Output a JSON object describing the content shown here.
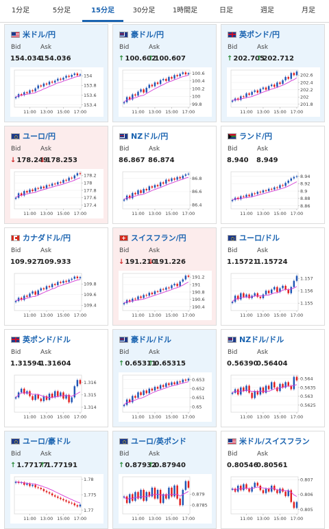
{
  "tabs": [
    {
      "label": "1分足",
      "active": false
    },
    {
      "label": "5分足",
      "active": false
    },
    {
      "label": "15分足",
      "active": true
    },
    {
      "label": "30分足",
      "active": false
    },
    {
      "label": "1時間足",
      "active": false
    },
    {
      "label": "日足",
      "active": false
    },
    {
      "label": "週足",
      "active": false
    },
    {
      "label": "月足",
      "active": false
    }
  ],
  "labels": {
    "bid": "Bid",
    "ask": "Ask"
  },
  "colors": {
    "candle_up": "#1f55b4",
    "candle_down": "#e01c1c",
    "moving_average": "#d63bd6",
    "accent": "#1a63b0",
    "arrow_up": "#2a8a3a",
    "arrow_down": "#d02828"
  },
  "pairs": [
    {
      "name": "米ドル/円",
      "flag_icon": "us-flag-icon",
      "flag": "us",
      "bid": "154.034",
      "ask": "154.036",
      "arrow": "",
      "highlight": "pos",
      "chart": {
        "type": "candlestick",
        "x_ticks": [
          "11:00",
          "13:00",
          "15:00",
          "17:00"
        ],
        "y_ticks": [
          "154",
          "153.8",
          "153.6",
          "153.4"
        ],
        "ylim": [
          153.35,
          154.12
        ],
        "closes": [
          153.56,
          153.62,
          153.6,
          153.66,
          153.64,
          153.7,
          153.68,
          153.74,
          153.8,
          153.78,
          153.84,
          153.82,
          153.88,
          153.86,
          153.9,
          153.94,
          153.92,
          153.96,
          154.0,
          153.98,
          154.02,
          154.05,
          154.01,
          154.03
        ]
      }
    },
    {
      "name": "豪ドル/円",
      "flag_icon": "au-flag-icon",
      "flag": "au",
      "bid": "100.602",
      "ask": "100.607",
      "arrow": "up",
      "highlight": "pos",
      "chart": {
        "type": "candlestick",
        "x_ticks": [
          "11:00",
          "13:00",
          "15:00",
          "17:00"
        ],
        "y_ticks": [
          "100.6",
          "100.4",
          "100.2",
          "100",
          "99.8"
        ],
        "ylim": [
          99.72,
          100.68
        ],
        "closes": [
          99.85,
          99.98,
          99.92,
          100.05,
          100.02,
          100.12,
          100.18,
          100.1,
          100.22,
          100.3,
          100.26,
          100.36,
          100.32,
          100.42,
          100.45,
          100.4,
          100.5,
          100.46,
          100.55,
          100.52,
          100.58,
          100.62,
          100.57,
          100.6
        ]
      }
    },
    {
      "name": "英ポンド/円",
      "flag_icon": "gb-flag-icon",
      "flag": "gb",
      "bid": "202.705",
      "ask": "202.712",
      "arrow": "up",
      "highlight": "pos",
      "chart": {
        "type": "candlestick",
        "x_ticks": [
          "11:00",
          "13:00",
          "15:00",
          "17:00"
        ],
        "y_ticks": [
          "202.6",
          "202.4",
          "202.2",
          "202",
          "201.8"
        ],
        "ylim": [
          201.72,
          202.74
        ],
        "closes": [
          201.9,
          201.96,
          201.92,
          202.02,
          202.0,
          202.1,
          202.06,
          202.14,
          202.18,
          202.12,
          202.22,
          202.26,
          202.2,
          202.3,
          202.34,
          202.28,
          202.4,
          202.36,
          202.46,
          202.55,
          202.5,
          202.66,
          202.6,
          202.7
        ]
      }
    },
    {
      "name": "ユーロ/円",
      "flag_icon": "eu-flag-icon",
      "flag": "eu",
      "bid": "178.249",
      "ask": "178.253",
      "arrow": "down",
      "highlight": "neg",
      "chart": {
        "type": "candlestick",
        "x_ticks": [
          "11:00",
          "13:00",
          "15:00",
          "17:00"
        ],
        "y_ticks": [
          "178.2",
          "178",
          "177.8",
          "177.6",
          "177.4"
        ],
        "ylim": [
          177.3,
          178.3
        ],
        "closes": [
          177.6,
          177.72,
          177.66,
          177.78,
          177.74,
          177.82,
          177.78,
          177.86,
          177.84,
          177.9,
          177.86,
          177.94,
          177.92,
          177.98,
          177.96,
          178.02,
          178.0,
          178.08,
          178.06,
          178.14,
          178.12,
          178.2,
          178.26,
          178.24
        ]
      }
    },
    {
      "name": "NZドル/円",
      "flag_icon": "nz-flag-icon",
      "flag": "nz",
      "bid": "86.867",
      "ask": "86.874",
      "arrow": "",
      "highlight": "none",
      "chart": {
        "type": "candlestick",
        "x_ticks": [
          "11:00",
          "13:00",
          "15:00",
          "17:00"
        ],
        "y_ticks": [
          "86.8",
          "86.6",
          "86.4"
        ],
        "ylim": [
          86.34,
          86.9
        ],
        "closes": [
          86.48,
          86.54,
          86.5,
          86.58,
          86.56,
          86.62,
          86.58,
          86.64,
          86.62,
          86.68,
          86.66,
          86.7,
          86.68,
          86.74,
          86.72,
          86.78,
          86.76,
          86.8,
          86.78,
          86.82,
          86.8,
          86.84,
          86.86,
          86.87
        ]
      }
    },
    {
      "name": "ランド/円",
      "flag_icon": "za-flag-icon",
      "flag": "za",
      "bid": "8.940",
      "ask": "8.949",
      "arrow": "",
      "highlight": "none",
      "chart": {
        "type": "candlestick",
        "x_ticks": [
          "11:00",
          "13:00",
          "15:00",
          "17:00"
        ],
        "y_ticks": [
          "8.94",
          "8.92",
          "8.9",
          "8.88",
          "8.86"
        ],
        "ylim": [
          8.852,
          8.952
        ],
        "closes": [
          8.876,
          8.882,
          8.878,
          8.886,
          8.884,
          8.89,
          8.886,
          8.894,
          8.892,
          8.898,
          8.896,
          8.902,
          8.9,
          8.906,
          8.904,
          8.91,
          8.908,
          8.916,
          8.914,
          8.922,
          8.928,
          8.934,
          8.938,
          8.94
        ]
      }
    },
    {
      "name": "カナダドル/円",
      "flag_icon": "ca-flag-icon",
      "flag": "ca",
      "bid": "109.927",
      "ask": "109.933",
      "arrow": "",
      "highlight": "none",
      "chart": {
        "type": "candlestick",
        "x_ticks": [
          "11:00",
          "13:00",
          "15:00",
          "17:00"
        ],
        "y_ticks": [
          "109.8",
          "109.6",
          "109.4"
        ],
        "ylim": [
          109.3,
          110.0
        ],
        "closes": [
          109.48,
          109.54,
          109.5,
          109.58,
          109.56,
          109.62,
          109.66,
          109.6,
          109.68,
          109.72,
          109.7,
          109.76,
          109.74,
          109.8,
          109.78,
          109.84,
          109.82,
          109.86,
          109.84,
          109.88,
          109.9,
          109.94,
          109.91,
          109.93
        ]
      }
    },
    {
      "name": "スイスフラン/円",
      "flag_icon": "ch-flag-icon",
      "flag": "ch",
      "bid": "191.210",
      "ask": "191.226",
      "arrow": "down",
      "highlight": "neg",
      "chart": {
        "type": "candlestick",
        "x_ticks": [
          "11:00",
          "13:00",
          "15:00",
          "17:00"
        ],
        "y_ticks": [
          "191.2",
          "191",
          "190.8",
          "190.6",
          "190.4"
        ],
        "ylim": [
          190.3,
          191.3
        ],
        "closes": [
          190.5,
          190.58,
          190.54,
          190.62,
          190.6,
          190.68,
          190.64,
          190.72,
          190.7,
          190.78,
          190.74,
          190.82,
          190.8,
          190.88,
          190.86,
          190.92,
          190.9,
          190.98,
          191.02,
          190.96,
          191.08,
          191.14,
          191.24,
          191.21
        ]
      }
    },
    {
      "name": "ユーロ/ドル",
      "flag_icon": "eu-flag-icon",
      "flag": "eu",
      "bid": "1.15721",
      "ask": "1.15724",
      "arrow": "",
      "highlight": "none",
      "chart": {
        "type": "candlestick",
        "x_ticks": [
          "11:00",
          "13:00",
          "15:00",
          "17:00"
        ],
        "y_ticks": [
          "1.157",
          "1.156",
          "1.155"
        ],
        "ylim": [
          1.1544,
          1.1574
        ],
        "closes": [
          1.1551,
          1.1556,
          1.1553,
          1.1558,
          1.1555,
          1.1557,
          1.1554,
          1.1556,
          1.1558,
          1.1555,
          1.1554,
          1.1557,
          1.156,
          1.1558,
          1.1561,
          1.1563,
          1.1559,
          1.1562,
          1.1564,
          1.1561,
          1.1558,
          1.1563,
          1.1568,
          1.1572
        ]
      }
    },
    {
      "name": "英ポンド/ドル",
      "flag_icon": "gb-flag-icon",
      "flag": "gb",
      "bid": "1.31594",
      "ask": "1.31604",
      "arrow": "",
      "highlight": "none",
      "chart": {
        "type": "candlestick",
        "x_ticks": [
          "11:00",
          "13:00",
          "15:00",
          "17:00"
        ],
        "y_ticks": [
          "1.316",
          "1.315",
          "1.314"
        ],
        "ylim": [
          1.3136,
          1.3166
        ],
        "closes": [
          1.3148,
          1.3152,
          1.3155,
          1.3151,
          1.3153,
          1.3149,
          1.3146,
          1.315,
          1.3147,
          1.3145,
          1.3149,
          1.3146,
          1.3151,
          1.3148,
          1.3153,
          1.3149,
          1.3152,
          1.3147,
          1.315,
          1.3144,
          1.3148,
          1.3157,
          1.3162,
          1.3159
        ]
      }
    },
    {
      "name": "豪ドル/ドル",
      "flag_icon": "au-flag-icon",
      "flag": "au",
      "bid": "0.65311",
      "ask": "0.65315",
      "arrow": "up",
      "highlight": "pos",
      "chart": {
        "type": "candlestick",
        "x_ticks": [
          "11:00",
          "13:00",
          "15:00",
          "17:00"
        ],
        "y_ticks": [
          "0.653",
          "0.652",
          "0.651",
          "0.65"
        ],
        "ylim": [
          0.6494,
          0.6535
        ],
        "closes": [
          0.6502,
          0.6508,
          0.6505,
          0.6512,
          0.651,
          0.6516,
          0.6513,
          0.6518,
          0.6515,
          0.652,
          0.6518,
          0.6522,
          0.652,
          0.6524,
          0.6522,
          0.6526,
          0.6524,
          0.6527,
          0.6525,
          0.6528,
          0.6527,
          0.653,
          0.6529,
          0.6531
        ]
      }
    },
    {
      "name": "NZドル/ドル",
      "flag_icon": "nz-flag-icon",
      "flag": "nz",
      "bid": "0.56390",
      "ask": "0.56404",
      "arrow": "",
      "highlight": "none",
      "chart": {
        "type": "candlestick",
        "x_ticks": [
          "11:00",
          "13:00",
          "15:00",
          "17:00"
        ],
        "y_ticks": [
          "0.564",
          "0.5635",
          "0.563",
          "0.5625"
        ],
        "ylim": [
          0.5621,
          0.5642
        ],
        "closes": [
          0.5632,
          0.5634,
          0.5631,
          0.5635,
          0.5633,
          0.5636,
          0.5632,
          0.5629,
          0.5633,
          0.5631,
          0.5635,
          0.5632,
          0.5636,
          0.5634,
          0.5638,
          0.5635,
          0.5633,
          0.5637,
          0.5635,
          0.5638,
          0.5636,
          0.5634,
          0.5641,
          0.5639
        ]
      }
    },
    {
      "name": "ユーロ/豪ドル",
      "flag_icon": "eu-flag-icon",
      "flag": "eu",
      "bid": "1.77177",
      "ask": "1.77191",
      "arrow": "up",
      "highlight": "pos",
      "chart": {
        "type": "candlestick",
        "x_ticks": [
          "11:00",
          "13:00",
          "15:00",
          "17:00"
        ],
        "y_ticks": [
          "1.78",
          "1.775",
          "1.77"
        ],
        "ylim": [
          1.7688,
          1.7808
        ],
        "closes": [
          1.7792,
          1.7788,
          1.779,
          1.7782,
          1.7786,
          1.7778,
          1.7782,
          1.7774,
          1.7772,
          1.7768,
          1.7762,
          1.7758,
          1.7754,
          1.7748,
          1.7744,
          1.774,
          1.7736,
          1.7732,
          1.7728,
          1.7724,
          1.7722,
          1.7716,
          1.7712,
          1.7718
        ]
      }
    },
    {
      "name": "ユーロ/英ポンド",
      "flag_icon": "eu-flag-icon",
      "flag": "eu",
      "bid": "0.87932",
      "ask": "0.87940",
      "arrow": "up",
      "highlight": "pos",
      "chart": {
        "type": "candlestick",
        "x_ticks": [
          "11:00",
          "13:00",
          "15:00",
          "17:00"
        ],
        "y_ticks": [
          "0.879",
          "0.8785"
        ],
        "ylim": [
          0.8781,
          0.8798
        ],
        "closes": [
          0.8789,
          0.8786,
          0.879,
          0.8787,
          0.8791,
          0.8788,
          0.8792,
          0.8787,
          0.8791,
          0.8789,
          0.8793,
          0.8788,
          0.8792,
          0.8786,
          0.879,
          0.8788,
          0.8793,
          0.8789,
          0.8794,
          0.8788,
          0.8785,
          0.8792,
          0.8796,
          0.8793
        ]
      }
    },
    {
      "name": "米ドル/スイスフラン",
      "flag_icon": "us-flag-icon",
      "flag": "us",
      "bid": "0.80546",
      "ask": "0.80561",
      "arrow": "",
      "highlight": "none",
      "chart": {
        "type": "candlestick",
        "x_ticks": [
          "11:00",
          "13:00",
          "15:00",
          "17:00"
        ],
        "y_ticks": [
          "0.807",
          "0.806",
          "0.805"
        ],
        "ylim": [
          0.8047,
          0.8072
        ],
        "closes": [
          0.8064,
          0.8062,
          0.8066,
          0.8063,
          0.8067,
          0.8064,
          0.8062,
          0.8065,
          0.8068,
          0.8066,
          0.8063,
          0.8061,
          0.8064,
          0.8062,
          0.8066,
          0.8063,
          0.8061,
          0.8064,
          0.8062,
          0.8059,
          0.8063,
          0.8055,
          0.8051,
          0.8055
        ]
      }
    }
  ]
}
